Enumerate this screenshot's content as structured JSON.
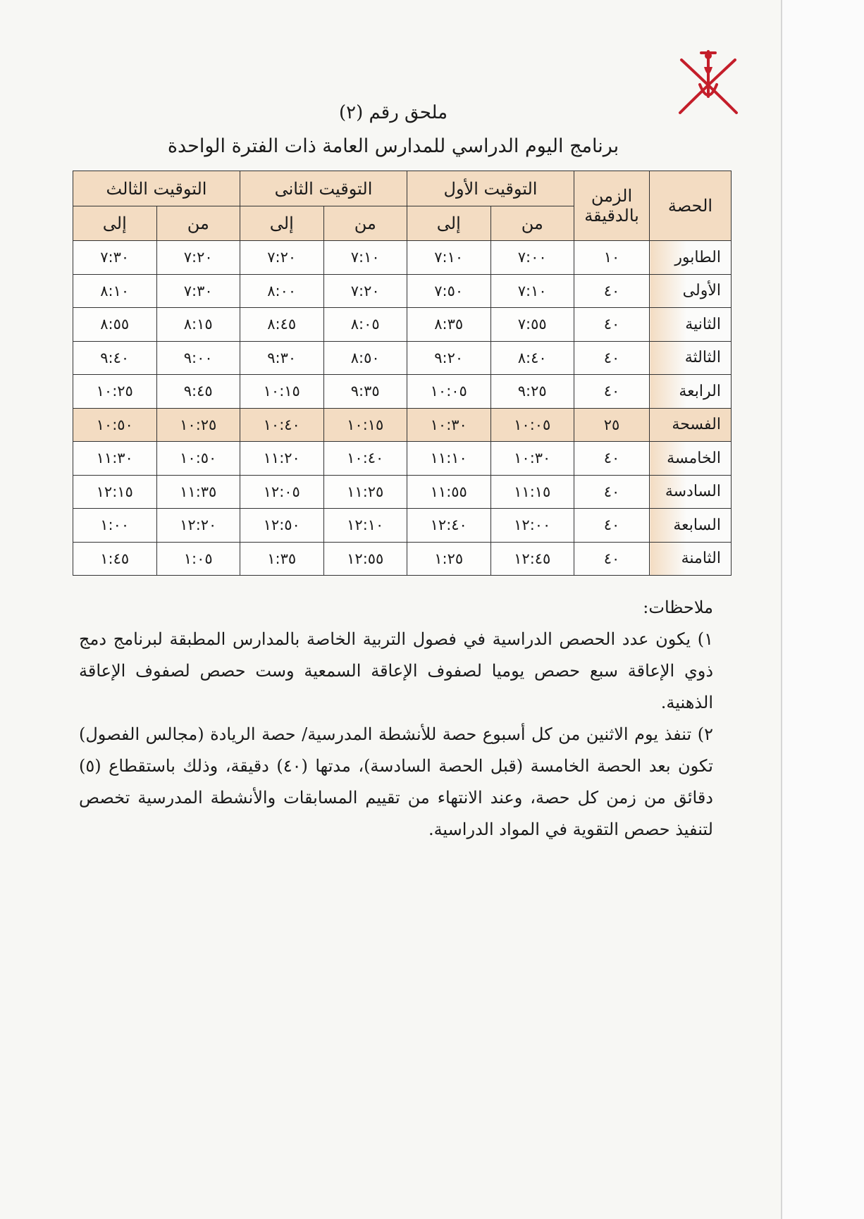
{
  "document": {
    "title": "ملحق رقم (٢)",
    "subtitle": "برنامج اليوم الدراسي للمدارس العامة ذات الفترة الواحدة",
    "emblem": "oman-national-emblem",
    "accent_color": "#f3dcc2"
  },
  "table": {
    "headers": {
      "period": "الحصة",
      "duration": "الزمن بالدقيقة",
      "timings": [
        "التوقيت الأول",
        "التوقيت الثانى",
        "التوقيت الثالث"
      ],
      "from": "من",
      "to": "إلى"
    },
    "rows": [
      {
        "name": "الطابور",
        "duration": "١٠",
        "times": [
          "٧:٠٠",
          "٧:١٠",
          "٧:١٠",
          "٧:٢٠",
          "٧:٢٠",
          "٧:٣٠"
        ]
      },
      {
        "name": "الأولى",
        "duration": "٤٠",
        "times": [
          "٧:١٠",
          "٧:٥٠",
          "٧:٢٠",
          "٨:٠٠",
          "٧:٣٠",
          "٨:١٠"
        ]
      },
      {
        "name": "الثانية",
        "duration": "٤٠",
        "times": [
          "٧:٥٥",
          "٨:٣٥",
          "٨:٠٥",
          "٨:٤٥",
          "٨:١٥",
          "٨:٥٥"
        ]
      },
      {
        "name": "الثالثة",
        "duration": "٤٠",
        "times": [
          "٨:٤٠",
          "٩:٢٠",
          "٨:٥٠",
          "٩:٣٠",
          "٩:٠٠",
          "٩:٤٠"
        ]
      },
      {
        "name": "الرابعة",
        "duration": "٤٠",
        "times": [
          "٩:٢٥",
          "١٠:٠٥",
          "٩:٣٥",
          "١٠:١٥",
          "٩:٤٥",
          "١٠:٢٥"
        ]
      },
      {
        "name": "الفسحة",
        "duration": "٢٥",
        "times": [
          "١٠:٠٥",
          "١٠:٣٠",
          "١٠:١٥",
          "١٠:٤٠",
          "١٠:٢٥",
          "١٠:٥٠"
        ],
        "highlight": true
      },
      {
        "name": "الخامسة",
        "duration": "٤٠",
        "times": [
          "١٠:٣٠",
          "١١:١٠",
          "١٠:٤٠",
          "١١:٢٠",
          "١٠:٥٠",
          "١١:٣٠"
        ]
      },
      {
        "name": "السادسة",
        "duration": "٤٠",
        "times": [
          "١١:١٥",
          "١١:٥٥",
          "١١:٢٥",
          "١٢:٠٥",
          "١١:٣٥",
          "١٢:١٥"
        ]
      },
      {
        "name": "السابعة",
        "duration": "٤٠",
        "times": [
          "١٢:٠٠",
          "١٢:٤٠",
          "١٢:١٠",
          "١٢:٥٠",
          "١٢:٢٠",
          "١:٠٠"
        ]
      },
      {
        "name": "الثامنة",
        "duration": "٤٠",
        "times": [
          "١٢:٤٥",
          "١:٢٥",
          "١٢:٥٥",
          "١:٣٥",
          "١:٠٥",
          "١:٤٥"
        ]
      }
    ]
  },
  "notes": {
    "heading": "ملاحظات:",
    "items": [
      "١) يكون عدد الحصص الدراسية في فصول التربية الخاصة بالمدارس المطبقة لبرنامج دمج ذوي الإعاقة سبع حصص يوميا لصفوف الإعاقة السمعية وست حصص لصفوف الإعاقة الذهنية.",
      "٢) تنفذ يوم الاثنين من كل أسبوع حصة للأنشطة المدرسية/ حصة الريادة (مجالس الفصول) تكون بعد الحصة الخامسة (قبل الحصة السادسة)، مدتها (٤٠) دقيقة، وذلك باستقطاع (٥) دقائق من زمن كل حصة، وعند الانتهاء من تقييم المسابقات والأنشطة المدرسية تخصص لتنفيذ حصص التقوية في المواد الدراسية."
    ]
  }
}
